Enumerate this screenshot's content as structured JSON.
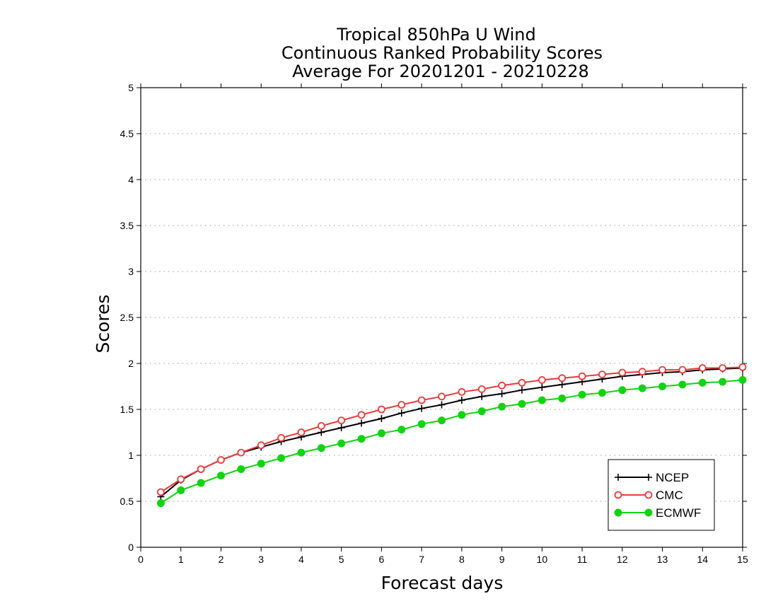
{
  "chart_data": {
    "type": "line",
    "title": [
      "Tropical 850hPa U Wind",
      "Continuous Ranked Probability Scores",
      "Average For 20201201 - 20210228"
    ],
    "xlabel": "Forecast days",
    "ylabel": "Scores",
    "xlim": [
      0,
      15
    ],
    "ylim": [
      0,
      5
    ],
    "xticks": [
      0,
      1,
      2,
      3,
      4,
      5,
      6,
      7,
      8,
      9,
      10,
      11,
      12,
      13,
      14,
      15
    ],
    "yticks": [
      0,
      0.5,
      1,
      1.5,
      2,
      2.5,
      3,
      3.5,
      4,
      4.5,
      5
    ],
    "ytick_labels": [
      "0",
      "0.5",
      "1",
      "1.5",
      "2",
      "2.5",
      "3",
      "3.5",
      "4",
      "4.5",
      "5"
    ],
    "grid": "horizontal-dotted",
    "legend_position": "bottom-right",
    "x": [
      0.5,
      1,
      1.5,
      2,
      2.5,
      3,
      3.5,
      4,
      4.5,
      5,
      5.5,
      6,
      6.5,
      7,
      7.5,
      8,
      8.5,
      9,
      9.5,
      10,
      10.5,
      11,
      11.5,
      12,
      12.5,
      13,
      13.5,
      14,
      14.5,
      15
    ],
    "series": [
      {
        "name": "NCEP",
        "color": "#000000",
        "marker": "plus",
        "values": [
          0.55,
          0.73,
          0.85,
          0.95,
          1.03,
          1.09,
          1.15,
          1.2,
          1.25,
          1.3,
          1.35,
          1.4,
          1.46,
          1.51,
          1.55,
          1.6,
          1.64,
          1.67,
          1.71,
          1.74,
          1.77,
          1.8,
          1.83,
          1.86,
          1.88,
          1.9,
          1.91,
          1.93,
          1.94,
          1.95
        ]
      },
      {
        "name": "CMC",
        "color": "#e8393b",
        "marker": "open-circle",
        "values": [
          0.6,
          0.74,
          0.85,
          0.95,
          1.03,
          1.11,
          1.19,
          1.25,
          1.32,
          1.38,
          1.44,
          1.5,
          1.55,
          1.6,
          1.64,
          1.69,
          1.72,
          1.76,
          1.79,
          1.82,
          1.84,
          1.86,
          1.88,
          1.9,
          1.91,
          1.93,
          1.93,
          1.95,
          1.95,
          1.96
        ]
      },
      {
        "name": "ECMWF",
        "color": "#12d312",
        "marker": "filled-circle",
        "values": [
          0.48,
          0.62,
          0.7,
          0.78,
          0.85,
          0.91,
          0.97,
          1.03,
          1.08,
          1.13,
          1.18,
          1.24,
          1.28,
          1.34,
          1.38,
          1.44,
          1.48,
          1.53,
          1.56,
          1.6,
          1.62,
          1.66,
          1.68,
          1.71,
          1.73,
          1.75,
          1.77,
          1.79,
          1.8,
          1.82
        ]
      }
    ]
  }
}
